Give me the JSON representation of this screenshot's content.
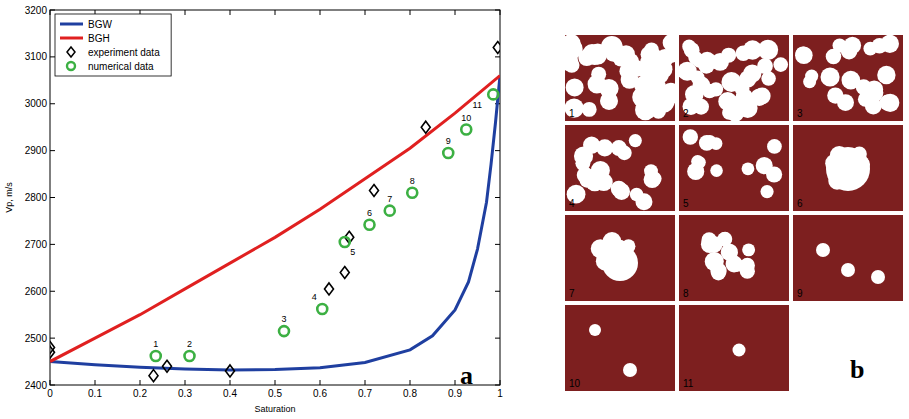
{
  "chart_data": {
    "type": "line",
    "panel_label": "a",
    "x_label": "Saturation",
    "y_label": "Vp, m/s",
    "xlim": [
      0,
      1
    ],
    "ylim": [
      2400,
      3200
    ],
    "xticks": [
      0,
      0.1,
      0.2,
      0.3,
      0.4,
      0.5,
      0.6,
      0.7,
      0.8,
      0.9,
      1
    ],
    "yticks": [
      2400,
      2500,
      2600,
      2700,
      2800,
      2900,
      3000,
      3100,
      3200
    ],
    "legend": "top-left",
    "grid": false,
    "series": [
      {
        "name": "BGW",
        "type": "line",
        "color": "#1f3fa0",
        "line_style": "solid",
        "x": [
          0,
          0.1,
          0.2,
          0.3,
          0.4,
          0.5,
          0.6,
          0.7,
          0.8,
          0.85,
          0.9,
          0.93,
          0.95,
          0.97,
          0.98,
          0.99,
          1
        ],
        "values": [
          2450,
          2443,
          2438,
          2434,
          2432,
          2433,
          2437,
          2448,
          2475,
          2505,
          2560,
          2620,
          2690,
          2790,
          2870,
          2960,
          3060
        ]
      },
      {
        "name": "BGH",
        "type": "line",
        "color": "#e02020",
        "line_style": "solid",
        "x": [
          0,
          0.1,
          0.2,
          0.3,
          0.4,
          0.5,
          0.6,
          0.7,
          0.8,
          0.9,
          1
        ],
        "values": [
          2450,
          2500,
          2550,
          2605,
          2660,
          2715,
          2775,
          2840,
          2905,
          2980,
          3060
        ]
      },
      {
        "name": "experiment data",
        "type": "scatter",
        "marker": "diamond",
        "color": "#000000",
        "x": [
          0,
          0,
          0.23,
          0.26,
          0.4,
          0.62,
          0.655,
          0.665,
          0.72,
          0.835,
          0.995
        ],
        "values": [
          2470,
          2480,
          2420,
          2440,
          2430,
          2605,
          2640,
          2715,
          2815,
          2950,
          3120
        ]
      },
      {
        "name": "numerical data",
        "type": "scatter",
        "marker": "circle",
        "color": "#3cb043",
        "x": [
          0.235,
          0.31,
          0.52,
          0.605,
          0.655,
          0.71,
          0.755,
          0.805,
          0.885,
          0.925,
          0.985
        ],
        "values": [
          2462,
          2462,
          2515,
          2562,
          2705,
          2742,
          2772,
          2810,
          2895,
          2945,
          3020
        ],
        "labels": [
          "1",
          "2",
          "3",
          "4",
          "5",
          "6",
          "7",
          "8",
          "9",
          "10",
          "11"
        ]
      }
    ]
  },
  "panel_b": {
    "label": "b",
    "images": [
      "1",
      "2",
      "3",
      "4",
      "5",
      "6",
      "7",
      "8",
      "9",
      "10",
      "11"
    ]
  }
}
